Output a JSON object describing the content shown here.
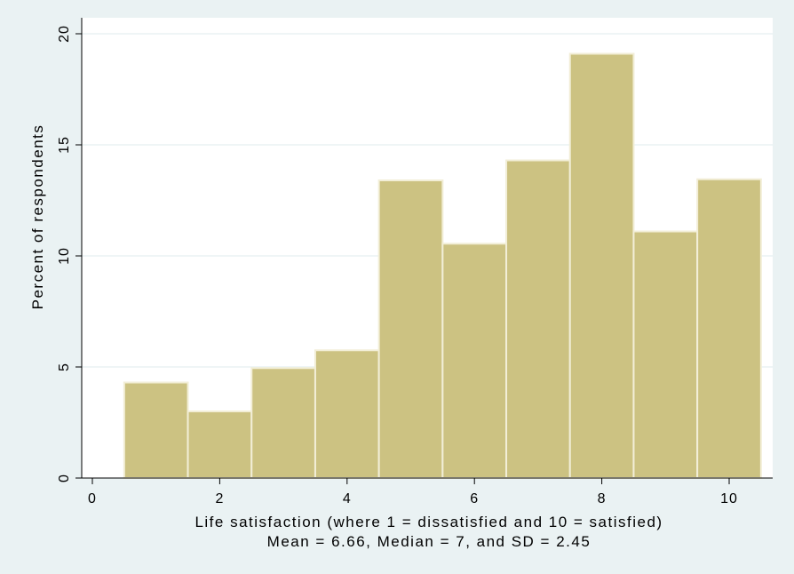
{
  "chart_data": {
    "type": "bar",
    "subtype": "histogram",
    "bins": [
      1,
      2,
      3,
      4,
      5,
      6,
      7,
      8,
      9,
      10
    ],
    "values": [
      4.3,
      3.0,
      4.95,
      5.75,
      13.4,
      10.55,
      14.3,
      19.1,
      11.1,
      13.45
    ],
    "xlabel": "Life satisfaction (where 1 = dissatisfied and 10 = satisfied)",
    "subtitle": "Mean = 6.66, Median = 7, and SD = 2.45",
    "ylabel": "Percent of respondents",
    "xlim": [
      0,
      10.5
    ],
    "ylim": [
      0,
      20
    ],
    "xticks": [
      "0",
      "2",
      "4",
      "6",
      "8",
      "10"
    ],
    "yticks": [
      "0",
      "5",
      "10",
      "15",
      "20"
    ],
    "grid": true,
    "colors": {
      "bar_fill": "#ccc282",
      "bar_stroke": "#f2eed7",
      "plot_background": "#ffffff",
      "page_background": "#eaf2f3",
      "grid": "#eaf2f3"
    }
  }
}
